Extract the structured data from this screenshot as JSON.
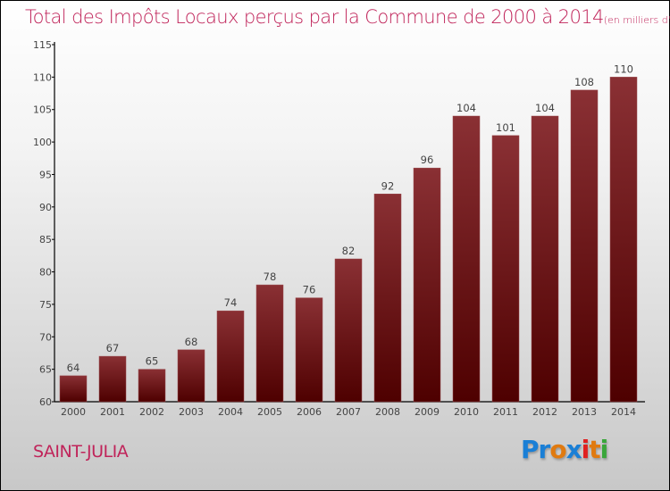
{
  "title": "Total des Impôts Locaux perçus par la Commune de 2000 à 2014",
  "unit": "(en milliers d'€)",
  "city": "SAINT-JULIA",
  "logo": {
    "text": "Proxiti",
    "colors": [
      "#1a7fd6",
      "#1a7fd6",
      "#e07a10",
      "#1a7fd6",
      "#e02020",
      "#e07a10",
      "#3aa63a"
    ]
  },
  "chart_data": {
    "type": "bar",
    "title": "Total des Impôts Locaux perçus par la Commune de 2000 à 2014",
    "ylabel": "(en milliers d'€)",
    "categories": [
      "2000",
      "2001",
      "2002",
      "2003",
      "2004",
      "2005",
      "2006",
      "2007",
      "2008",
      "2009",
      "2010",
      "2011",
      "2012",
      "2013",
      "2014"
    ],
    "values": [
      64,
      67,
      65,
      68,
      74,
      78,
      76,
      82,
      92,
      96,
      104,
      101,
      104,
      108,
      110
    ],
    "ylim": [
      60,
      115
    ],
    "yticks": [
      60,
      65,
      70,
      75,
      80,
      85,
      90,
      95,
      100,
      105,
      110,
      115
    ],
    "grid": false,
    "bar_color": "#7a1a1e"
  }
}
